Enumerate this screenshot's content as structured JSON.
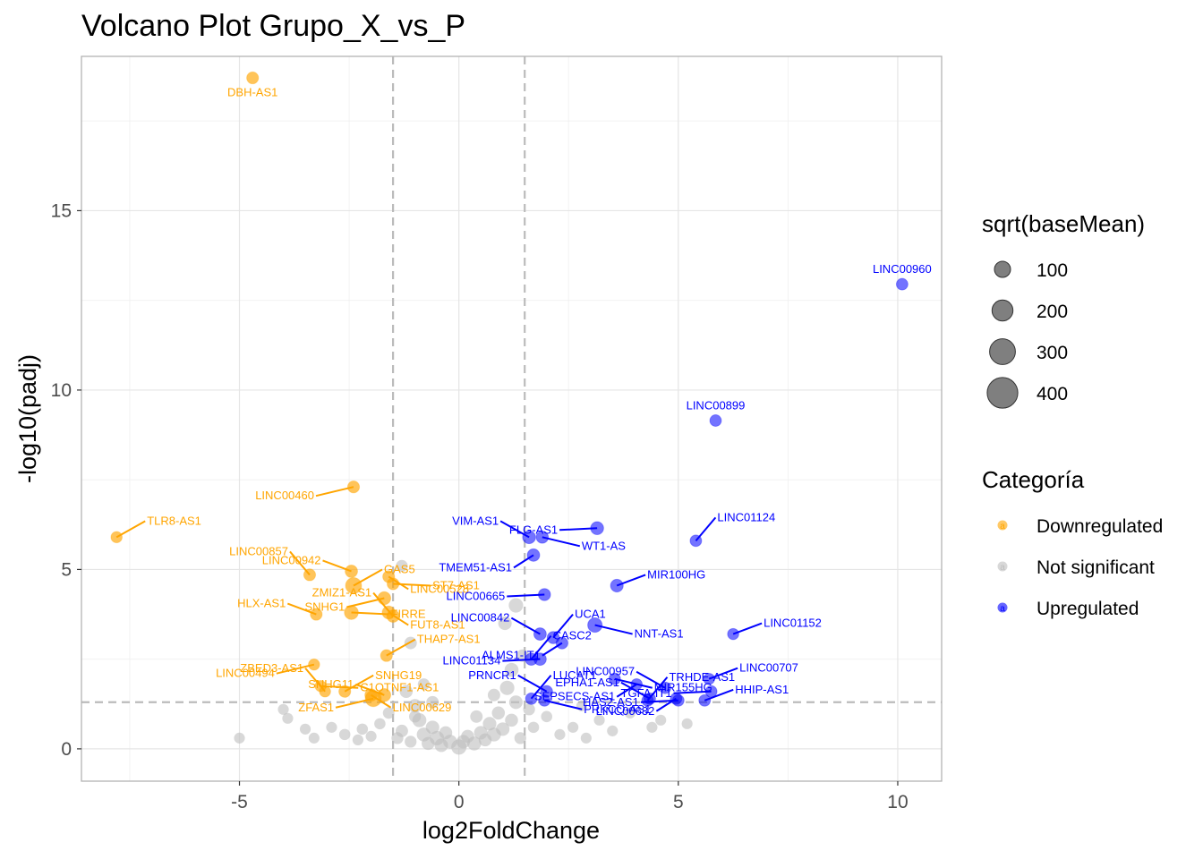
{
  "chart_data": {
    "type": "scatter",
    "title": "Volcano Plot Grupo_X_vs_P",
    "xlabel": "log2FoldChange",
    "ylabel": "-log10(padj)",
    "xlim": [
      -8.6,
      11.0
    ],
    "ylim": [
      -0.9,
      19.3
    ],
    "xticks": [
      -5,
      0,
      5,
      10
    ],
    "yticks": [
      0,
      5,
      10,
      15
    ],
    "grid": true,
    "thresholds": {
      "x": [
        -1.5,
        1.5
      ],
      "y": 1.3
    },
    "colors": {
      "Downregulated": "#ffa500",
      "Not significant": "#bebebe",
      "Upregulated": "#0000ff",
      "threshold_line": "#bbbbbb",
      "grid_major": "#e5e5e5",
      "panel_border": "#b3b3b3"
    },
    "legend_placement": "right",
    "legend_size": {
      "title": "sqrt(baseMean)",
      "entries": [
        {
          "label": "100",
          "value": 100
        },
        {
          "label": "200",
          "value": 200
        },
        {
          "label": "300",
          "value": 300
        },
        {
          "label": "400",
          "value": 400
        }
      ]
    },
    "legend_color": {
      "title": "Categoría",
      "entries": [
        {
          "label": "Downregulated",
          "key": "Downregulated"
        },
        {
          "label": "Not significant",
          "key": "Not significant"
        },
        {
          "label": "Upregulated",
          "key": "Upregulated"
        }
      ]
    },
    "labeled_points": [
      {
        "gene": "DBH-AS1",
        "x": -4.7,
        "y": 18.7,
        "size": 60,
        "cat": "Downregulated"
      },
      {
        "gene": "TLR8-AS1",
        "x": -7.8,
        "y": 5.9,
        "size": 50,
        "cat": "Downregulated"
      },
      {
        "gene": "LINC00460",
        "x": -2.4,
        "y": 7.3,
        "size": 60,
        "cat": "Downregulated"
      },
      {
        "gene": "LINC00528",
        "x": -1.6,
        "y": 4.8,
        "size": 60,
        "cat": "Downregulated"
      },
      {
        "gene": "LINC00942",
        "x": -2.45,
        "y": 4.95,
        "size": 70,
        "cat": "Downregulated"
      },
      {
        "gene": "ST7-AS1",
        "x": -1.5,
        "y": 4.6,
        "size": 60,
        "cat": "Downregulated"
      },
      {
        "gene": "LINC00857",
        "x": -3.4,
        "y": 4.85,
        "size": 60,
        "cat": "Downregulated"
      },
      {
        "gene": "GAS5",
        "x": -2.4,
        "y": 4.55,
        "size": 150,
        "cat": "Downregulated"
      },
      {
        "gene": "SNHG1",
        "x": -1.7,
        "y": 4.2,
        "size": 80,
        "cat": "Downregulated"
      },
      {
        "gene": "FUT8-AS1",
        "x": -1.6,
        "y": 3.8,
        "size": 80,
        "cat": "Downregulated"
      },
      {
        "gene": "HLX-AS1",
        "x": -3.25,
        "y": 3.75,
        "size": 60,
        "cat": "Downregulated"
      },
      {
        "gene": "FIRRE",
        "x": -2.45,
        "y": 3.8,
        "size": 100,
        "cat": "Downregulated"
      },
      {
        "gene": "ZMIZ1-AS1",
        "x": -1.5,
        "y": 3.7,
        "size": 70,
        "cat": "Downregulated"
      },
      {
        "gene": "THAP7-AS1",
        "x": -1.65,
        "y": 2.6,
        "size": 60,
        "cat": "Downregulated"
      },
      {
        "gene": "LINC00494",
        "x": -3.3,
        "y": 2.35,
        "size": 50,
        "cat": "Downregulated"
      },
      {
        "gene": "LINC00629",
        "x": -2.0,
        "y": 1.5,
        "size": 70,
        "cat": "Downregulated"
      },
      {
        "gene": "SNHG11",
        "x": -1.7,
        "y": 1.5,
        "size": 80,
        "cat": "Downregulated"
      },
      {
        "gene": "C1QTNF1-AS1",
        "x": -3.15,
        "y": 1.75,
        "size": 50,
        "cat": "Downregulated"
      },
      {
        "gene": "ZBED3-AS1",
        "x": -3.05,
        "y": 1.6,
        "size": 50,
        "cat": "Downregulated"
      },
      {
        "gene": "SNHG19",
        "x": -2.6,
        "y": 1.6,
        "size": 60,
        "cat": "Downregulated"
      },
      {
        "gene": "ZFAS1",
        "x": -1.95,
        "y": 1.4,
        "size": 150,
        "cat": "Downregulated"
      },
      {
        "gene": "LINC00960",
        "x": 10.1,
        "y": 12.95,
        "size": 55,
        "cat": "Upregulated"
      },
      {
        "gene": "LINC00899",
        "x": 5.85,
        "y": 9.15,
        "size": 55,
        "cat": "Upregulated"
      },
      {
        "gene": "FLG-AS1",
        "x": 3.15,
        "y": 6.15,
        "size": 80,
        "cat": "Upregulated"
      },
      {
        "gene": "LINC01124",
        "x": 5.4,
        "y": 5.8,
        "size": 55,
        "cat": "Upregulated"
      },
      {
        "gene": "VIM-AS1",
        "x": 1.6,
        "y": 5.9,
        "size": 80,
        "cat": "Upregulated"
      },
      {
        "gene": "WT1-AS",
        "x": 1.9,
        "y": 5.9,
        "size": 65,
        "cat": "Upregulated"
      },
      {
        "gene": "TMEM51-AS1",
        "x": 1.7,
        "y": 5.4,
        "size": 70,
        "cat": "Upregulated"
      },
      {
        "gene": "MIR100HG",
        "x": 3.6,
        "y": 4.55,
        "size": 75,
        "cat": "Upregulated"
      },
      {
        "gene": "LINC00665",
        "x": 1.95,
        "y": 4.3,
        "size": 65,
        "cat": "Upregulated"
      },
      {
        "gene": "UCA1",
        "x": 2.15,
        "y": 3.1,
        "size": 65,
        "cat": "Upregulated"
      },
      {
        "gene": "LINC00842",
        "x": 1.85,
        "y": 3.2,
        "size": 70,
        "cat": "Upregulated"
      },
      {
        "gene": "NNT-AS1",
        "x": 3.1,
        "y": 3.45,
        "size": 110,
        "cat": "Upregulated"
      },
      {
        "gene": "ALMS1-IT1",
        "x": 2.35,
        "y": 2.95,
        "size": 60,
        "cat": "Upregulated"
      },
      {
        "gene": "LINC01152",
        "x": 6.25,
        "y": 3.2,
        "size": 50,
        "cat": "Upregulated"
      },
      {
        "gene": "LINC01134",
        "x": 1.85,
        "y": 2.5,
        "size": 70,
        "cat": "Upregulated"
      },
      {
        "gene": "CASC2",
        "x": 1.65,
        "y": 2.5,
        "size": 65,
        "cat": "Upregulated"
      },
      {
        "gene": "LINC00957",
        "x": 4.7,
        "y": 1.7,
        "size": 55,
        "cat": "Upregulated"
      },
      {
        "gene": "MIR155HG",
        "x": 3.55,
        "y": 1.95,
        "size": 55,
        "cat": "Upregulated"
      },
      {
        "gene": "SEPSECS-AS1",
        "x": 4.05,
        "y": 1.8,
        "size": 50,
        "cat": "Upregulated"
      },
      {
        "gene": "LINC00707",
        "x": 5.7,
        "y": 1.95,
        "size": 50,
        "cat": "Upregulated"
      },
      {
        "gene": "TGFA-IT1",
        "x": 5.75,
        "y": 1.6,
        "size": 55,
        "cat": "Upregulated"
      },
      {
        "gene": "LUCAT1",
        "x": 1.65,
        "y": 1.4,
        "size": 55,
        "cat": "Upregulated"
      },
      {
        "gene": "EPHA1-AS1",
        "x": 4.35,
        "y": 1.4,
        "size": 55,
        "cat": "Upregulated"
      },
      {
        "gene": "PRKCQ-AS1",
        "x": 1.95,
        "y": 1.35,
        "size": 55,
        "cat": "Upregulated"
      },
      {
        "gene": "LINC00632",
        "x": 4.95,
        "y": 1.4,
        "size": 55,
        "cat": "Upregulated"
      },
      {
        "gene": "HHIP-AS1",
        "x": 5.6,
        "y": 1.35,
        "size": 55,
        "cat": "Upregulated"
      },
      {
        "gene": "HAS2-AS1",
        "x": 5.0,
        "y": 1.35,
        "size": 55,
        "cat": "Upregulated"
      },
      {
        "gene": "TRHDE-AS1",
        "x": 4.3,
        "y": 1.35,
        "size": 55,
        "cat": "Upregulated"
      },
      {
        "gene": "PRNCR1",
        "x": 2.0,
        "y": 1.6,
        "size": 60,
        "cat": "Upregulated"
      }
    ],
    "background_points": [
      {
        "x": -5.0,
        "y": 0.3,
        "size": 45
      },
      {
        "x": -4.0,
        "y": 1.1,
        "size": 45
      },
      {
        "x": -3.9,
        "y": 0.85,
        "size": 45
      },
      {
        "x": -3.5,
        "y": 0.55,
        "size": 45
      },
      {
        "x": -3.3,
        "y": 0.3,
        "size": 45
      },
      {
        "x": -2.9,
        "y": 0.6,
        "size": 45
      },
      {
        "x": -2.6,
        "y": 0.4,
        "size": 50
      },
      {
        "x": -2.3,
        "y": 0.25,
        "size": 45
      },
      {
        "x": -2.2,
        "y": 0.55,
        "size": 50
      },
      {
        "x": -2.0,
        "y": 0.35,
        "size": 45
      },
      {
        "x": -1.8,
        "y": 0.7,
        "size": 50
      },
      {
        "x": -1.4,
        "y": 0.3,
        "size": 60
      },
      {
        "x": -1.3,
        "y": 5.1,
        "size": 60
      },
      {
        "x": -1.1,
        "y": 2.95,
        "size": 70
      },
      {
        "x": -1.2,
        "y": 1.6,
        "size": 80
      },
      {
        "x": -1.0,
        "y": 1.2,
        "size": 90
      },
      {
        "x": -0.9,
        "y": 0.8,
        "size": 100
      },
      {
        "x": -1.3,
        "y": 0.5,
        "size": 70
      },
      {
        "x": -1.1,
        "y": 0.2,
        "size": 60
      },
      {
        "x": -0.8,
        "y": 0.4,
        "size": 100
      },
      {
        "x": -0.7,
        "y": 0.15,
        "size": 80
      },
      {
        "x": -0.6,
        "y": 0.6,
        "size": 90
      },
      {
        "x": -0.5,
        "y": 0.3,
        "size": 110
      },
      {
        "x": -0.4,
        "y": 0.1,
        "size": 90
      },
      {
        "x": -0.3,
        "y": 0.45,
        "size": 80
      },
      {
        "x": -0.2,
        "y": 0.2,
        "size": 100
      },
      {
        "x": 0.0,
        "y": 0.05,
        "size": 130
      },
      {
        "x": 0.1,
        "y": 0.2,
        "size": 90
      },
      {
        "x": 0.2,
        "y": 0.35,
        "size": 80
      },
      {
        "x": 0.35,
        "y": 0.15,
        "size": 100
      },
      {
        "x": 0.5,
        "y": 0.45,
        "size": 90
      },
      {
        "x": 0.6,
        "y": 0.25,
        "size": 80
      },
      {
        "x": 0.7,
        "y": 0.7,
        "size": 90
      },
      {
        "x": 0.8,
        "y": 0.4,
        "size": 100
      },
      {
        "x": 0.9,
        "y": 1.0,
        "size": 80
      },
      {
        "x": 1.0,
        "y": 0.55,
        "size": 90
      },
      {
        "x": 1.05,
        "y": 3.5,
        "size": 90
      },
      {
        "x": 1.3,
        "y": 4.0,
        "size": 110
      },
      {
        "x": 1.2,
        "y": 2.2,
        "size": 100
      },
      {
        "x": 1.1,
        "y": 1.7,
        "size": 110
      },
      {
        "x": 1.3,
        "y": 1.3,
        "size": 90
      },
      {
        "x": 1.45,
        "y": 2.6,
        "size": 70
      },
      {
        "x": 1.2,
        "y": 0.8,
        "size": 80
      },
      {
        "x": 1.4,
        "y": 0.3,
        "size": 60
      },
      {
        "x": 1.7,
        "y": 0.6,
        "size": 50
      },
      {
        "x": 2.0,
        "y": 0.9,
        "size": 50
      },
      {
        "x": 2.3,
        "y": 0.4,
        "size": 45
      },
      {
        "x": 2.6,
        "y": 0.6,
        "size": 45
      },
      {
        "x": 2.9,
        "y": 0.3,
        "size": 45
      },
      {
        "x": 3.2,
        "y": 0.8,
        "size": 45
      },
      {
        "x": 3.5,
        "y": 0.5,
        "size": 45
      },
      {
        "x": 3.9,
        "y": 1.0,
        "size": 45
      },
      {
        "x": 4.4,
        "y": 0.6,
        "size": 45
      },
      {
        "x": 4.6,
        "y": 0.8,
        "size": 45
      },
      {
        "x": 5.2,
        "y": 0.7,
        "size": 45
      },
      {
        "x": 2.8,
        "y": 1.2,
        "size": 45
      },
      {
        "x": -1.6,
        "y": 1.0,
        "size": 55
      },
      {
        "x": -0.8,
        "y": 1.8,
        "size": 60
      },
      {
        "x": -0.6,
        "y": 1.3,
        "size": 70
      },
      {
        "x": 0.4,
        "y": 0.9,
        "size": 70
      },
      {
        "x": 0.8,
        "y": 1.5,
        "size": 70
      },
      {
        "x": -1.0,
        "y": 0.9,
        "size": 60
      },
      {
        "x": 1.6,
        "y": 1.1,
        "size": 60
      }
    ]
  }
}
